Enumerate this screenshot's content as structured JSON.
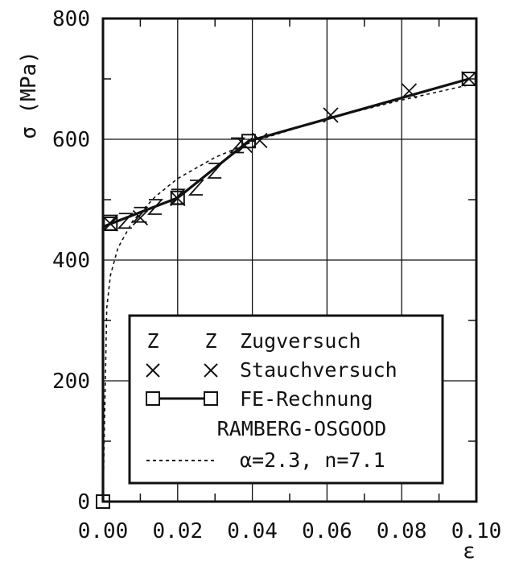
{
  "chart_data": {
    "type": "line",
    "title": "",
    "xlabel": "ε",
    "ylabel": "σ (MPa)",
    "xlim": [
      0.0,
      0.1
    ],
    "ylim": [
      0,
      800
    ],
    "x_ticks": [
      "0.00",
      "0.02",
      "0.04",
      "0.06",
      "0.08",
      "0.10"
    ],
    "y_ticks": [
      "0",
      "200",
      "400",
      "600",
      "800"
    ],
    "grid": true,
    "legend_position": "bottom-right",
    "series": [
      {
        "name": "Zugversuch",
        "style": "marker",
        "marker": "Z",
        "points": [
          [
            0.002,
            462
          ],
          [
            0.006,
            465
          ],
          [
            0.01,
            475
          ],
          [
            0.014,
            488
          ],
          [
            0.02,
            505
          ],
          [
            0.025,
            520
          ],
          [
            0.03,
            548
          ],
          [
            0.036,
            590
          ]
        ]
      },
      {
        "name": "Stauchversuch",
        "style": "marker",
        "marker": "X",
        "points": [
          [
            0.002,
            460
          ],
          [
            0.01,
            470
          ],
          [
            0.02,
            502
          ],
          [
            0.038,
            590
          ],
          [
            0.042,
            598
          ],
          [
            0.061,
            640
          ],
          [
            0.082,
            680
          ],
          [
            0.098,
            700
          ]
        ]
      },
      {
        "name": "FE-Rechnung",
        "style": "line-marker",
        "marker": "square",
        "points": [
          [
            0.0,
            0
          ],
          [
            0.0,
            455
          ],
          [
            0.002,
            460
          ],
          [
            0.02,
            503
          ],
          [
            0.039,
            597
          ],
          [
            0.098,
            700
          ]
        ]
      },
      {
        "name": "RAMBERG-OSGOOD",
        "style": "dashed",
        "points": [
          [
            0.0,
            0
          ],
          [
            0.001,
            320
          ],
          [
            0.002,
            375
          ],
          [
            0.004,
            420
          ],
          [
            0.008,
            465
          ],
          [
            0.014,
            505
          ],
          [
            0.02,
            535
          ],
          [
            0.03,
            570
          ],
          [
            0.04,
            596
          ],
          [
            0.06,
            634
          ],
          [
            0.08,
            665
          ],
          [
            0.098,
            690
          ]
        ]
      }
    ],
    "legend": {
      "entries": [
        "Zugversuch",
        "Stauchversuch",
        "FE-Rechnung"
      ],
      "ro_title": "RAMBERG-OSGOOD",
      "ro_params": "α=2.3, n=7.1"
    }
  }
}
